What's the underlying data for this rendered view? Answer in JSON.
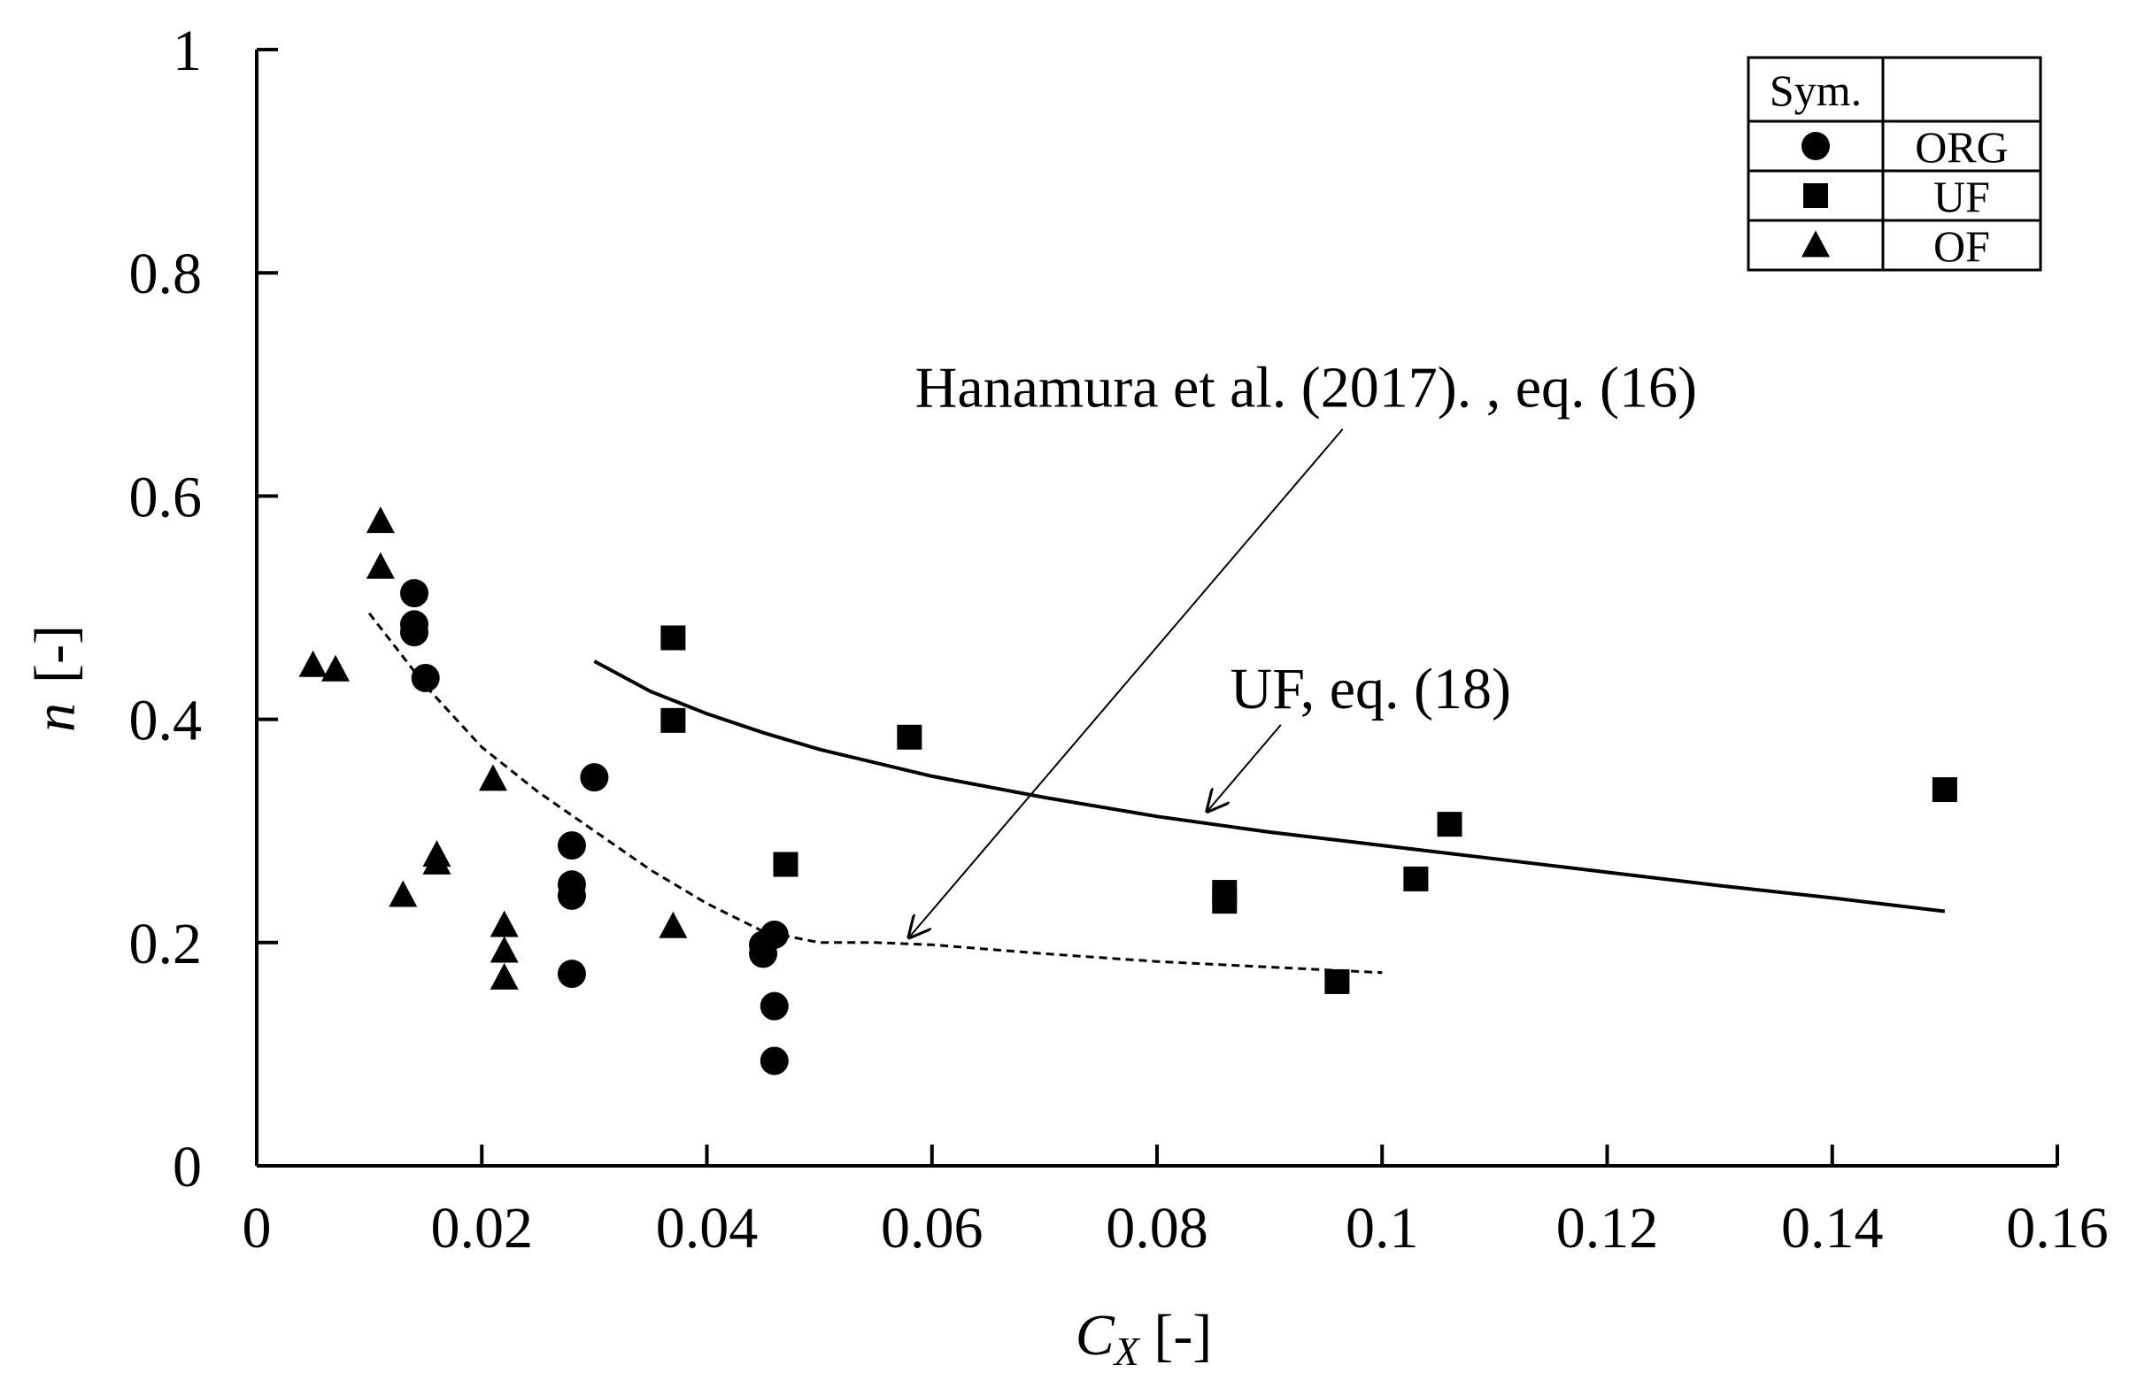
{
  "chart_data": {
    "type": "scatter",
    "title": "",
    "xlabel": {
      "symbol": "C",
      "subscript": "X",
      "unit": " [-]"
    },
    "ylabel": {
      "symbol": "n",
      "unit": "[-]"
    },
    "xlim": [
      0,
      0.16
    ],
    "ylim": [
      0,
      1
    ],
    "xticks": [
      0,
      0.02,
      0.04,
      0.06,
      0.08,
      0.1,
      0.12,
      0.14,
      0.16
    ],
    "xtick_labels": [
      "0",
      "0.02",
      "0.04",
      "0.06",
      "0.08",
      "0.1",
      "0.12",
      "0.14",
      "0.16"
    ],
    "yticks": [
      0,
      0.2,
      0.4,
      0.6,
      0.8,
      1
    ],
    "ytick_labels": [
      "0",
      "0.2",
      "0.4",
      "0.6",
      "0.8",
      "1"
    ],
    "grid": false,
    "legend": {
      "position": "top-right",
      "header": [
        "Sym.",
        ""
      ],
      "entries": [
        {
          "marker": "circle",
          "label": "ORG"
        },
        {
          "marker": "square",
          "label": "UF"
        },
        {
          "marker": "triangle",
          "label": "OF"
        }
      ]
    },
    "series": [
      {
        "name": "ORG",
        "marker": "circle",
        "points": [
          [
            0.014,
            0.513
          ],
          [
            0.014,
            0.485
          ],
          [
            0.014,
            0.478
          ],
          [
            0.015,
            0.437
          ],
          [
            0.03,
            0.348
          ],
          [
            0.028,
            0.287
          ],
          [
            0.028,
            0.252
          ],
          [
            0.028,
            0.242
          ],
          [
            0.028,
            0.172
          ],
          [
            0.046,
            0.207
          ],
          [
            0.045,
            0.198
          ],
          [
            0.045,
            0.19
          ],
          [
            0.046,
            0.143
          ],
          [
            0.046,
            0.094
          ]
        ]
      },
      {
        "name": "UF",
        "marker": "square",
        "points": [
          [
            0.037,
            0.473
          ],
          [
            0.037,
            0.399
          ],
          [
            0.058,
            0.384
          ],
          [
            0.047,
            0.27
          ],
          [
            0.086,
            0.245
          ],
          [
            0.086,
            0.237
          ],
          [
            0.096,
            0.165
          ],
          [
            0.103,
            0.257
          ],
          [
            0.106,
            0.306
          ],
          [
            0.15,
            0.337
          ]
        ]
      },
      {
        "name": "OF",
        "marker": "triangle",
        "points": [
          [
            0.011,
            0.576
          ],
          [
            0.011,
            0.535
          ],
          [
            0.005,
            0.447
          ],
          [
            0.007,
            0.443
          ],
          [
            0.021,
            0.345
          ],
          [
            0.016,
            0.277
          ],
          [
            0.016,
            0.27
          ],
          [
            0.013,
            0.241
          ],
          [
            0.022,
            0.214
          ],
          [
            0.022,
            0.191
          ],
          [
            0.022,
            0.167
          ],
          [
            0.037,
            0.213
          ]
        ]
      }
    ],
    "curves": [
      {
        "name": "Hanamura et al. (2017)., eq. (16)",
        "style": "dashed",
        "points": [
          [
            0.01,
            0.495
          ],
          [
            0.015,
            0.43
          ],
          [
            0.02,
            0.375
          ],
          [
            0.025,
            0.335
          ],
          [
            0.03,
            0.3
          ],
          [
            0.035,
            0.265
          ],
          [
            0.04,
            0.235
          ],
          [
            0.045,
            0.21
          ],
          [
            0.05,
            0.2
          ],
          [
            0.055,
            0.2
          ],
          [
            0.06,
            0.198
          ],
          [
            0.07,
            0.19
          ],
          [
            0.08,
            0.183
          ],
          [
            0.09,
            0.178
          ],
          [
            0.1,
            0.173
          ]
        ]
      },
      {
        "name": "UF, eq. (18)",
        "style": "solid",
        "points": [
          [
            0.03,
            0.452
          ],
          [
            0.035,
            0.425
          ],
          [
            0.04,
            0.405
          ],
          [
            0.045,
            0.388
          ],
          [
            0.05,
            0.373
          ],
          [
            0.06,
            0.349
          ],
          [
            0.07,
            0.33
          ],
          [
            0.08,
            0.313
          ],
          [
            0.09,
            0.299
          ],
          [
            0.1,
            0.287
          ],
          [
            0.11,
            0.275
          ],
          [
            0.12,
            0.263
          ],
          [
            0.13,
            0.251
          ],
          [
            0.14,
            0.24
          ],
          [
            0.15,
            0.228
          ]
        ]
      }
    ],
    "annotations": [
      {
        "text": "Hanamura et al. (2017). , eq. (16)",
        "text_at": [
          0.0585,
          0.68
        ],
        "arrow_from": [
          0.0965,
          0.66
        ],
        "arrow_to": [
          0.058,
          0.205
        ]
      },
      {
        "text": "UF, eq. (18)",
        "text_at": [
          0.0865,
          0.41
        ],
        "arrow_from": [
          0.091,
          0.395
        ],
        "arrow_to": [
          0.0845,
          0.318
        ]
      }
    ]
  }
}
